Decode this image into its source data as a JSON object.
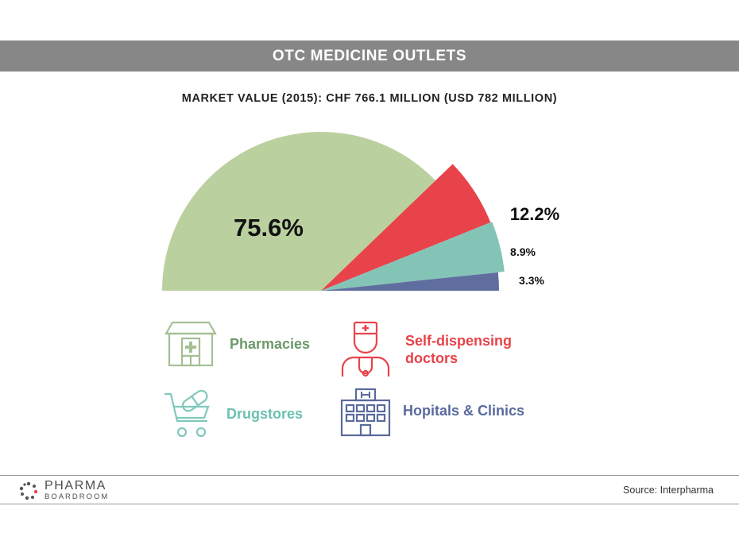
{
  "header": {
    "title": "OTC MEDICINE OUTLETS",
    "subtitle": "MARKET VALUE (2015): CHF 766.1 MILLION (USD 782 MILLION)"
  },
  "chart_data": {
    "type": "pie",
    "shape": "half-pie (upper semicircle, starts at left)",
    "slices": [
      {
        "name": "Pharmacies",
        "value": 75.6,
        "label": "75.6%",
        "color": "#bbd09f"
      },
      {
        "name": "Self-dispensing doctors",
        "value": 12.2,
        "label": "12.2%",
        "color": "#e8434a"
      },
      {
        "name": "Drugstores",
        "value": 8.9,
        "label": "8.9%",
        "color": "#84c4b7"
      },
      {
        "name": "Hopitals & Clinics",
        "value": 3.3,
        "label": "3.3%",
        "color": "#5f6e9f"
      }
    ],
    "legend_position": "bottom"
  },
  "legend": {
    "pharmacies": {
      "label": "Pharmacies",
      "icon": "pharmacy-building-icon",
      "color": "#6b9a6b"
    },
    "doctors": {
      "label": "Self-dispensing doctors",
      "icon": "doctor-icon",
      "color": "#e8434a"
    },
    "drugstores": {
      "label": "Drugstores",
      "icon": "pill-cart-icon",
      "color": "#6cc0b0"
    },
    "hospitals": {
      "label": "Hopitals & Clinics",
      "icon": "hospital-building-icon",
      "color": "#5a6a9c"
    }
  },
  "footer": {
    "logo_top": "PHARMA",
    "logo_bottom": "BOARDROOM",
    "source": "Source: Interpharma"
  }
}
